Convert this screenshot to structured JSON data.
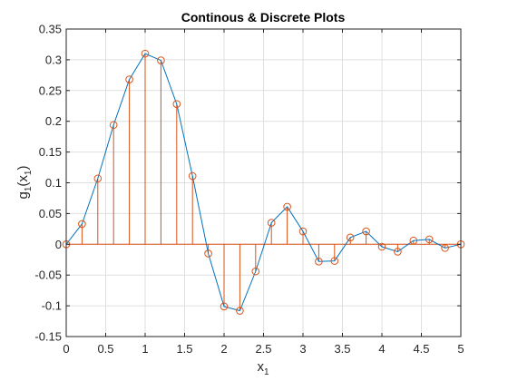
{
  "chart_data": {
    "type": "line",
    "title": "Continous & Discrete Plots",
    "xlabel": {
      "base": "x",
      "sub": "1"
    },
    "ylabel": {
      "base": "g",
      "sub": "1",
      "arg_base": "x",
      "arg_sub": "1"
    },
    "xlim": [
      0,
      5
    ],
    "ylim": [
      -0.15,
      0.35
    ],
    "xticks": [
      0,
      0.5,
      1,
      1.5,
      2,
      2.5,
      3,
      3.5,
      4,
      4.5,
      5
    ],
    "xtick_labels": [
      "0",
      "0.5",
      "1",
      "1.5",
      "2",
      "2.5",
      "3",
      "3.5",
      "4",
      "4.5",
      "5"
    ],
    "yticks": [
      -0.15,
      -0.1,
      -0.05,
      0,
      0.05,
      0.1,
      0.15,
      0.2,
      0.25,
      0.3,
      0.35
    ],
    "ytick_labels": [
      "-0.15",
      "-0.1",
      "-0.05",
      "0",
      "0.05",
      "0.1",
      "0.15",
      "0.2",
      "0.25",
      "0.3",
      "0.35"
    ],
    "grid": true,
    "x": [
      0,
      0.2,
      0.4,
      0.6,
      0.8,
      1.0,
      1.2,
      1.4,
      1.6,
      1.8,
      2.0,
      2.2,
      2.4,
      2.6,
      2.8,
      3.0,
      3.2,
      3.4,
      3.6,
      3.8,
      4.0,
      4.2,
      4.4,
      4.6,
      4.8,
      5.0
    ],
    "series": [
      {
        "kind": "line",
        "color": "#0072BD",
        "values": [
          0,
          0.033,
          0.107,
          0.194,
          0.268,
          0.31,
          0.299,
          0.228,
          0.111,
          -0.015,
          -0.101,
          -0.108,
          -0.044,
          0.035,
          0.061,
          0.021,
          -0.028,
          -0.027,
          0.011,
          0.021,
          -0.004,
          -0.012,
          0.006,
          0.008,
          -0.006,
          0.0
        ]
      },
      {
        "kind": "stem",
        "color": "#D95319",
        "values": [
          0,
          0.033,
          0.107,
          0.194,
          0.268,
          0.31,
          0.299,
          0.228,
          0.111,
          -0.015,
          -0.101,
          -0.108,
          -0.044,
          0.035,
          0.061,
          0.021,
          -0.028,
          -0.027,
          0.011,
          0.021,
          -0.004,
          -0.012,
          0.006,
          0.008,
          -0.006,
          0.0
        ]
      }
    ]
  }
}
